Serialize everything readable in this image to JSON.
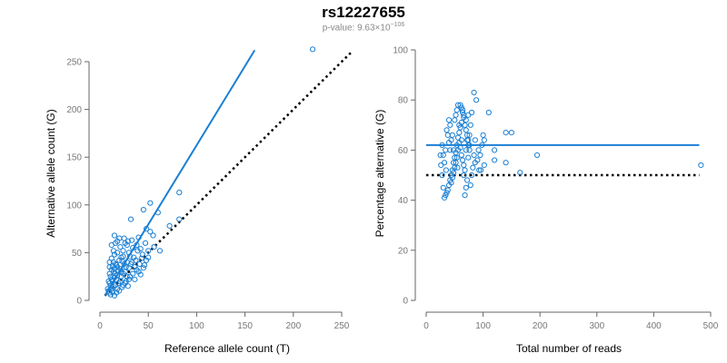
{
  "title": "rs12227655",
  "subtitle_prefix": "p-value: 9.63×10",
  "subtitle_exponent": "−106",
  "colors": {
    "points": "#1a7fd4",
    "fit": "#1a7fd4",
    "reference": "#000000",
    "axis": "#666666"
  },
  "chart_data": [
    {
      "type": "scatter",
      "xlabel": "Reference allele count (T)",
      "ylabel": "Alternative allele count (G)",
      "xlim": [
        0,
        250
      ],
      "ylim": [
        0,
        250
      ],
      "xticks": [
        "0",
        "50",
        "100",
        "150",
        "200",
        "250"
      ],
      "yticks": [
        "0",
        "50",
        "100",
        "150",
        "200",
        "250"
      ],
      "fit_line": {
        "x": [
          5,
          160
        ],
        "y": [
          5,
          262
        ]
      },
      "reference_line": {
        "x": [
          5,
          260
        ],
        "y": [
          5,
          260
        ]
      },
      "points": [
        [
          220,
          263
        ],
        [
          82,
          113
        ],
        [
          52,
          102
        ],
        [
          45,
          95
        ],
        [
          60,
          92
        ],
        [
          32,
          85
        ],
        [
          72,
          78
        ],
        [
          82,
          85
        ],
        [
          48,
          75
        ],
        [
          52,
          72
        ],
        [
          15,
          68
        ],
        [
          18,
          62
        ],
        [
          25,
          65
        ],
        [
          40,
          66
        ],
        [
          56,
          56
        ],
        [
          50,
          52
        ],
        [
          62,
          52
        ],
        [
          38,
          58
        ],
        [
          42,
          54
        ],
        [
          28,
          58
        ],
        [
          12,
          58
        ],
        [
          14,
          52
        ],
        [
          15,
          48
        ],
        [
          18,
          50
        ],
        [
          22,
          45
        ],
        [
          24,
          52
        ],
        [
          30,
          50
        ],
        [
          35,
          45
        ],
        [
          44,
          48
        ],
        [
          12,
          44
        ],
        [
          14,
          40
        ],
        [
          16,
          38
        ],
        [
          18,
          35
        ],
        [
          20,
          42
        ],
        [
          25,
          38
        ],
        [
          28,
          40
        ],
        [
          32,
          38
        ],
        [
          36,
          35
        ],
        [
          40,
          30
        ],
        [
          45,
          34
        ],
        [
          48,
          42
        ],
        [
          10,
          35
        ],
        [
          12,
          32
        ],
        [
          14,
          30
        ],
        [
          16,
          28
        ],
        [
          18,
          26
        ],
        [
          22,
          30
        ],
        [
          24,
          28
        ],
        [
          28,
          25
        ],
        [
          30,
          22
        ],
        [
          34,
          28
        ],
        [
          38,
          32
        ],
        [
          10,
          28
        ],
        [
          11,
          25
        ],
        [
          12,
          22
        ],
        [
          13,
          20
        ],
        [
          15,
          24
        ],
        [
          17,
          22
        ],
        [
          19,
          18
        ],
        [
          21,
          20
        ],
        [
          26,
          18
        ],
        [
          29,
          15
        ],
        [
          9,
          20
        ],
        [
          10,
          18
        ],
        [
          11,
          15
        ],
        [
          12,
          12
        ],
        [
          14,
          14
        ],
        [
          16,
          16
        ],
        [
          18,
          12
        ],
        [
          20,
          10
        ],
        [
          23,
          14
        ],
        [
          8,
          12
        ],
        [
          9,
          10
        ],
        [
          10,
          8
        ],
        [
          11,
          6
        ],
        [
          13,
          9
        ],
        [
          15,
          5
        ],
        [
          17,
          8
        ],
        [
          22,
          25
        ],
        [
          26,
          30
        ],
        [
          30,
          34
        ],
        [
          33,
          40
        ],
        [
          37,
          42
        ],
        [
          41,
          38
        ],
        [
          46,
          37
        ],
        [
          27,
          35
        ],
        [
          21,
          33
        ],
        [
          19,
          31
        ],
        [
          13,
          36
        ],
        [
          15,
          33
        ],
        [
          17,
          37
        ],
        [
          23,
          41
        ],
        [
          31,
          46
        ],
        [
          34,
          55
        ],
        [
          29,
          62
        ],
        [
          21,
          56
        ],
        [
          16,
          60
        ],
        [
          26,
          60
        ],
        [
          39,
          52
        ],
        [
          55,
          68
        ],
        [
          47,
          60
        ],
        [
          24,
          46
        ],
        [
          10,
          40
        ],
        [
          20,
          65
        ],
        [
          33,
          63
        ],
        [
          43,
          44
        ],
        [
          50,
          45
        ],
        [
          31,
          25
        ],
        [
          27,
          20
        ],
        [
          24,
          16
        ],
        [
          36,
          22
        ],
        [
          42,
          27
        ]
      ]
    },
    {
      "type": "scatter",
      "xlabel": "Total number of reads",
      "ylabel": "Percentage alternative (G)",
      "xlim": [
        0,
        500
      ],
      "ylim": [
        0,
        100
      ],
      "xticks": [
        "0",
        "100",
        "200",
        "300",
        "400",
        "500"
      ],
      "yticks": [
        "0",
        "20",
        "40",
        "60",
        "80",
        "100"
      ],
      "fit_line": {
        "x": [
          0,
          480
        ],
        "y": [
          62,
          62
        ]
      },
      "reference_line": {
        "x": [
          0,
          480
        ],
        "y": [
          50,
          50
        ]
      },
      "points": [
        [
          483,
          54
        ],
        [
          195,
          58
        ],
        [
          140,
          67
        ],
        [
          150,
          67
        ],
        [
          165,
          51
        ],
        [
          140,
          55
        ],
        [
          120,
          60
        ],
        [
          120,
          56
        ],
        [
          110,
          75
        ],
        [
          102,
          64
        ],
        [
          102,
          54
        ],
        [
          98,
          62
        ],
        [
          95,
          58
        ],
        [
          93,
          52
        ],
        [
          88,
          80
        ],
        [
          84,
          83
        ],
        [
          86,
          55
        ],
        [
          82,
          53
        ],
        [
          80,
          75
        ],
        [
          78,
          70
        ],
        [
          76,
          62
        ],
        [
          74,
          57
        ],
        [
          72,
          48
        ],
        [
          70,
          45
        ],
        [
          68,
          42
        ],
        [
          78,
          46
        ],
        [
          80,
          50
        ],
        [
          66,
          74
        ],
        [
          64,
          76
        ],
        [
          62,
          71
        ],
        [
          60,
          69
        ],
        [
          58,
          67
        ],
        [
          56,
          65
        ],
        [
          54,
          62
        ],
        [
          52,
          59
        ],
        [
          50,
          57
        ],
        [
          48,
          55
        ],
        [
          46,
          52
        ],
        [
          44,
          50
        ],
        [
          42,
          48
        ],
        [
          40,
          46
        ],
        [
          38,
          44
        ],
        [
          36,
          43
        ],
        [
          34,
          42
        ],
        [
          32,
          41
        ],
        [
          30,
          45
        ],
        [
          28,
          50
        ],
        [
          26,
          54
        ],
        [
          25,
          58
        ],
        [
          60,
          78
        ],
        [
          62,
          77
        ],
        [
          64,
          75
        ],
        [
          66,
          73
        ],
        [
          68,
          70
        ],
        [
          70,
          68
        ],
        [
          72,
          66
        ],
        [
          74,
          64
        ],
        [
          76,
          60
        ],
        [
          58,
          63
        ],
        [
          56,
          60
        ],
        [
          54,
          57
        ],
        [
          52,
          55
        ],
        [
          50,
          53
        ],
        [
          48,
          51
        ],
        [
          46,
          49
        ],
        [
          44,
          47
        ],
        [
          42,
          60
        ],
        [
          40,
          63
        ],
        [
          38,
          66
        ],
        [
          36,
          68
        ],
        [
          34,
          60
        ],
        [
          32,
          55
        ],
        [
          30,
          58
        ],
        [
          50,
          72
        ],
        [
          52,
          74
        ],
        [
          54,
          76
        ],
        [
          56,
          78
        ],
        [
          58,
          70
        ],
        [
          60,
          61
        ],
        [
          62,
          58
        ],
        [
          64,
          56
        ],
        [
          66,
          54
        ],
        [
          68,
          52
        ],
        [
          70,
          60
        ],
        [
          72,
          64
        ],
        [
          74,
          62
        ],
        [
          76,
          66
        ],
        [
          84,
          58
        ],
        [
          90,
          56
        ],
        [
          96,
          52
        ],
        [
          100,
          66
        ],
        [
          92,
          60
        ],
        [
          86,
          64
        ],
        [
          46,
          66
        ],
        [
          44,
          64
        ],
        [
          42,
          70
        ],
        [
          40,
          72
        ],
        [
          48,
          60
        ],
        [
          62,
          64
        ],
        [
          66,
          50
        ],
        [
          70,
          72
        ],
        [
          74,
          74
        ],
        [
          55,
          53
        ],
        [
          35,
          52
        ],
        [
          28,
          62
        ]
      ]
    }
  ]
}
